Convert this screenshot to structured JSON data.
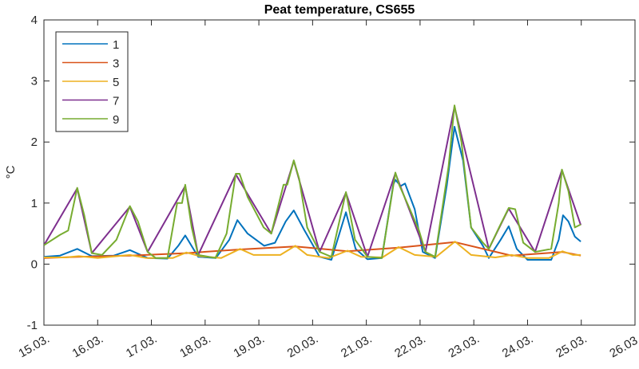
{
  "chart_data": {
    "type": "line",
    "title": "Peat temperature, CS655",
    "xlabel": "",
    "ylabel": "°C",
    "xlim": [
      0,
      11
    ],
    "ylim": [
      -1,
      4
    ],
    "x_unit": "days since 15.03.",
    "xticks": [
      0,
      1,
      2,
      3,
      4,
      5,
      6,
      7,
      8,
      9,
      10,
      11
    ],
    "xtick_labels": [
      "15.03.",
      "16.03.",
      "17.03.",
      "18.03.",
      "19.03.",
      "20.03.",
      "21.03.",
      "22.03.",
      "23.03.",
      "24.03.",
      "25.03.",
      "26.03."
    ],
    "yticks": [
      -1,
      0,
      1,
      2,
      3,
      4
    ],
    "ytick_labels": [
      "-1",
      "0",
      "1",
      "2",
      "3",
      "4"
    ],
    "grid": false,
    "legend_position": "top-left",
    "series": [
      {
        "name": "1",
        "color": "#0072BD",
        "points": [
          [
            0,
            0.12
          ],
          [
            0.3,
            0.14
          ],
          [
            0.62,
            0.25
          ],
          [
            0.89,
            0.13
          ],
          [
            1.3,
            0.14
          ],
          [
            1.6,
            0.23
          ],
          [
            1.93,
            0.1
          ],
          [
            2.3,
            0.09
          ],
          [
            2.5,
            0.3
          ],
          [
            2.63,
            0.47
          ],
          [
            2.87,
            0.12
          ],
          [
            3.2,
            0.1
          ],
          [
            3.45,
            0.4
          ],
          [
            3.6,
            0.72
          ],
          [
            3.79,
            0.5
          ],
          [
            4.1,
            0.3
          ],
          [
            4.3,
            0.35
          ],
          [
            4.5,
            0.7
          ],
          [
            4.65,
            0.88
          ],
          [
            4.85,
            0.55
          ],
          [
            5.13,
            0.12
          ],
          [
            5.35,
            0.07
          ],
          [
            5.62,
            0.85
          ],
          [
            5.8,
            0.25
          ],
          [
            6.02,
            0.08
          ],
          [
            6.29,
            0.1
          ],
          [
            6.5,
            1.3
          ],
          [
            6.54,
            1.38
          ],
          [
            6.64,
            1.28
          ],
          [
            6.72,
            1.32
          ],
          [
            6.9,
            0.9
          ],
          [
            7.05,
            0.2
          ],
          [
            7.28,
            0.1
          ],
          [
            7.5,
            1.3
          ],
          [
            7.64,
            2.25
          ],
          [
            7.8,
            1.7
          ],
          [
            7.95,
            0.6
          ],
          [
            8.17,
            0.3
          ],
          [
            8.28,
            0.1
          ],
          [
            8.5,
            0.4
          ],
          [
            8.65,
            0.62
          ],
          [
            8.8,
            0.25
          ],
          [
            9.0,
            0.07
          ],
          [
            9.44,
            0.07
          ],
          [
            9.58,
            0.4
          ],
          [
            9.66,
            0.8
          ],
          [
            9.76,
            0.7
          ],
          [
            9.88,
            0.45
          ],
          [
            9.99,
            0.37
          ]
        ]
      },
      {
        "name": "3",
        "color": "#D95319",
        "points": [
          [
            0,
            0.1
          ],
          [
            0.65,
            0.12
          ],
          [
            1.6,
            0.14
          ],
          [
            2.65,
            0.18
          ],
          [
            3.65,
            0.24
          ],
          [
            4.68,
            0.29
          ],
          [
            5.65,
            0.21
          ],
          [
            6.6,
            0.27
          ],
          [
            7.65,
            0.36
          ],
          [
            8.7,
            0.14
          ],
          [
            9.65,
            0.2
          ],
          [
            9.99,
            0.14
          ]
        ]
      },
      {
        "name": "5",
        "color": "#EDB120",
        "points": [
          [
            0,
            0.11
          ],
          [
            0.4,
            0.11
          ],
          [
            0.65,
            0.13
          ],
          [
            1.0,
            0.1
          ],
          [
            1.6,
            0.15
          ],
          [
            1.9,
            0.1
          ],
          [
            2.4,
            0.1
          ],
          [
            2.65,
            0.19
          ],
          [
            2.9,
            0.13
          ],
          [
            3.3,
            0.1
          ],
          [
            3.65,
            0.25
          ],
          [
            3.9,
            0.15
          ],
          [
            4.4,
            0.15
          ],
          [
            4.68,
            0.3
          ],
          [
            4.9,
            0.15
          ],
          [
            5.3,
            0.1
          ],
          [
            5.65,
            0.22
          ],
          [
            5.9,
            0.12
          ],
          [
            6.3,
            0.11
          ],
          [
            6.6,
            0.28
          ],
          [
            6.9,
            0.15
          ],
          [
            7.3,
            0.12
          ],
          [
            7.65,
            0.37
          ],
          [
            7.95,
            0.15
          ],
          [
            8.4,
            0.11
          ],
          [
            8.7,
            0.15
          ],
          [
            9.0,
            0.1
          ],
          [
            9.4,
            0.1
          ],
          [
            9.65,
            0.21
          ],
          [
            9.85,
            0.15
          ],
          [
            9.99,
            0.15
          ]
        ]
      },
      {
        "name": "7",
        "color": "#7E2F8E",
        "points": [
          [
            0,
            0.31
          ],
          [
            0.62,
            1.24
          ],
          [
            0.89,
            0.18
          ],
          [
            1.6,
            0.94
          ],
          [
            1.93,
            0.2
          ],
          [
            2.63,
            1.28
          ],
          [
            2.87,
            0.15
          ],
          [
            3.57,
            1.47
          ],
          [
            4.23,
            0.5
          ],
          [
            4.65,
            1.69
          ],
          [
            5.13,
            0.2
          ],
          [
            5.62,
            1.17
          ],
          [
            6.02,
            0.12
          ],
          [
            6.54,
            1.49
          ],
          [
            7.1,
            0.2
          ],
          [
            7.64,
            2.58
          ],
          [
            8.28,
            0.25
          ],
          [
            8.65,
            0.91
          ],
          [
            9.14,
            0.2
          ],
          [
            9.64,
            1.54
          ],
          [
            9.99,
            0.64
          ]
        ]
      },
      {
        "name": "9",
        "color": "#77AC30",
        "points": [
          [
            0,
            0.31
          ],
          [
            0.3,
            0.48
          ],
          [
            0.45,
            0.55
          ],
          [
            0.62,
            1.25
          ],
          [
            0.75,
            0.8
          ],
          [
            0.89,
            0.18
          ],
          [
            1.08,
            0.15
          ],
          [
            1.35,
            0.4
          ],
          [
            1.6,
            0.95
          ],
          [
            1.75,
            0.7
          ],
          [
            1.93,
            0.2
          ],
          [
            2.08,
            0.1
          ],
          [
            2.3,
            0.1
          ],
          [
            2.48,
            1.0
          ],
          [
            2.57,
            1.0
          ],
          [
            2.63,
            1.3
          ],
          [
            2.75,
            0.6
          ],
          [
            2.87,
            0.15
          ],
          [
            3.19,
            0.1
          ],
          [
            3.4,
            0.5
          ],
          [
            3.57,
            1.48
          ],
          [
            3.64,
            1.48
          ],
          [
            3.79,
            1.1
          ],
          [
            4.09,
            0.6
          ],
          [
            4.23,
            0.5
          ],
          [
            4.46,
            1.3
          ],
          [
            4.53,
            1.3
          ],
          [
            4.65,
            1.7
          ],
          [
            4.75,
            1.4
          ],
          [
            4.9,
            0.6
          ],
          [
            5.13,
            0.2
          ],
          [
            5.35,
            0.12
          ],
          [
            5.62,
            1.18
          ],
          [
            5.79,
            0.4
          ],
          [
            6.02,
            0.12
          ],
          [
            6.29,
            0.1
          ],
          [
            6.54,
            1.5
          ],
          [
            6.61,
            1.3
          ],
          [
            6.76,
            1.0
          ],
          [
            6.98,
            0.55
          ],
          [
            7.1,
            0.2
          ],
          [
            7.28,
            0.12
          ],
          [
            7.53,
            1.6
          ],
          [
            7.64,
            2.6
          ],
          [
            7.77,
            2.0
          ],
          [
            7.95,
            0.6
          ],
          [
            8.17,
            0.35
          ],
          [
            8.28,
            0.25
          ],
          [
            8.47,
            0.6
          ],
          [
            8.65,
            0.92
          ],
          [
            8.77,
            0.9
          ],
          [
            8.92,
            0.35
          ],
          [
            9.14,
            0.2
          ],
          [
            9.44,
            0.25
          ],
          [
            9.58,
            1.0
          ],
          [
            9.64,
            1.55
          ],
          [
            9.76,
            1.2
          ],
          [
            9.88,
            0.6
          ],
          [
            9.99,
            0.65
          ]
        ]
      }
    ]
  }
}
